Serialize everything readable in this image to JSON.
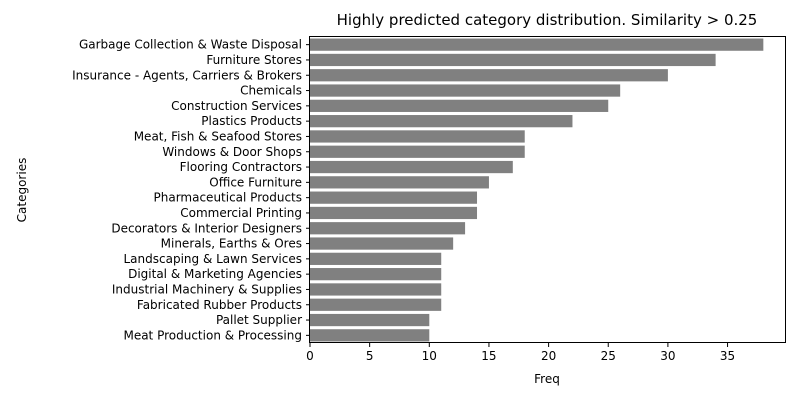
{
  "chart_data": {
    "type": "bar",
    "orientation": "horizontal",
    "title": "Highly predicted category distribution. Similarity > 0.25",
    "xlabel": "Freq",
    "ylabel": "Categories",
    "xlim": [
      0,
      40
    ],
    "xticks": [
      0,
      5,
      10,
      15,
      20,
      25,
      30,
      35
    ],
    "grid": false,
    "bar_color": "#808080",
    "categories": [
      "Garbage Collection & Waste Disposal",
      "Furniture Stores",
      "Insurance - Agents, Carriers & Brokers",
      "Chemicals",
      "Construction Services",
      "Plastics Products",
      "Meat, Fish & Seafood Stores",
      "Windows & Door Shops",
      "Flooring Contractors",
      "Office Furniture",
      "Pharmaceutical Products",
      "Commercial Printing",
      "Decorators & Interior Designers",
      "Minerals, Earths & Ores",
      "Landscaping & Lawn Services",
      "Digital & Marketing Agencies",
      "Industrial Machinery & Supplies",
      "Fabricated Rubber Products",
      "Pallet Supplier",
      "Meat Production & Processing"
    ],
    "values": [
      38,
      34,
      30,
      26,
      25,
      22,
      18,
      18,
      17,
      15,
      14,
      14,
      13,
      12,
      11,
      11,
      11,
      11,
      10,
      10
    ]
  }
}
